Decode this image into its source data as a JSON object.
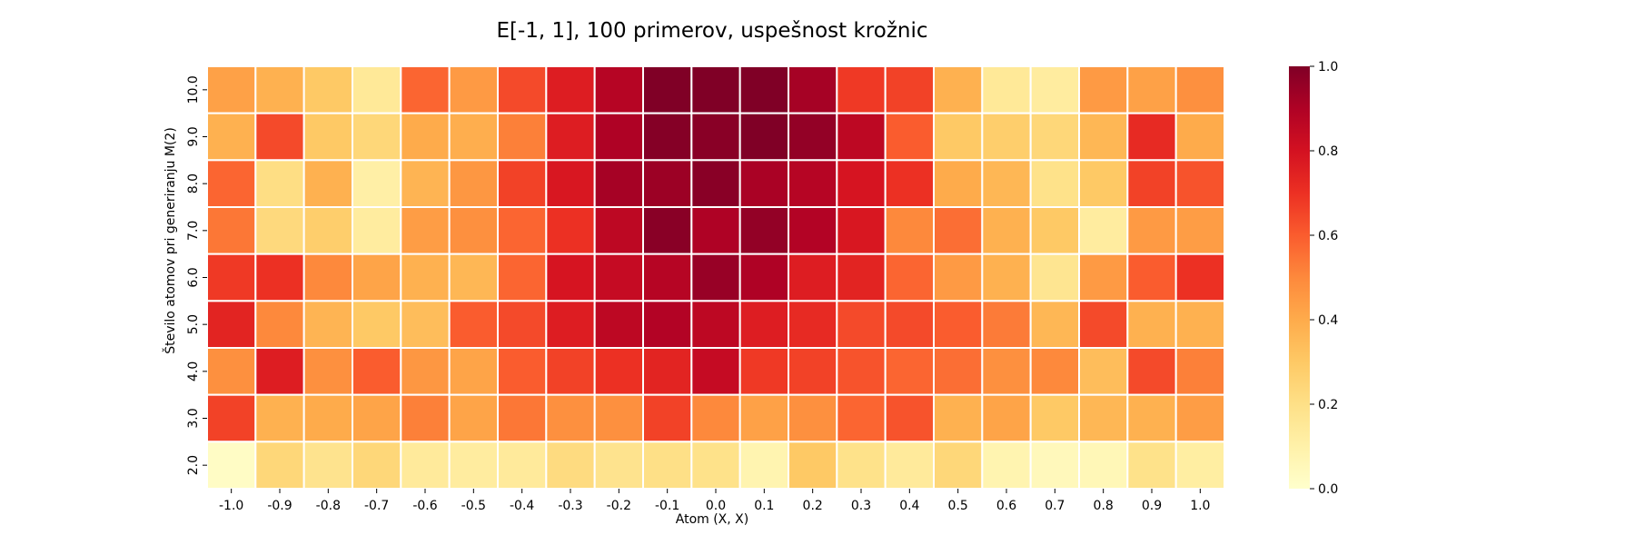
{
  "chart_data": {
    "type": "heatmap",
    "title": "E[-1, 1], 100 primerov, uspešnost krožnic",
    "xlabel": "Atom (X, X)",
    "ylabel": "Število atomov pri generiranju M(2)",
    "x_categories": [
      "-1.0",
      "-0.9",
      "-0.8",
      "-0.7",
      "-0.6",
      "-0.5",
      "-0.4",
      "-0.3",
      "-0.2",
      "-0.1",
      "0.0",
      "0.1",
      "0.2",
      "0.3",
      "0.4",
      "0.5",
      "0.6",
      "0.7",
      "0.8",
      "0.9",
      "1.0"
    ],
    "y_categories": [
      "10.0",
      "9.0",
      "8.0",
      "7.0",
      "6.0",
      "5.0",
      "4.0",
      "3.0",
      "2.0"
    ],
    "values": [
      [
        0.43,
        0.38,
        0.3,
        0.15,
        0.58,
        0.45,
        0.64,
        0.76,
        0.88,
        1.0,
        1.0,
        1.0,
        0.92,
        0.68,
        0.66,
        0.38,
        0.15,
        0.13,
        0.45,
        0.43,
        0.48
      ],
      [
        0.38,
        0.64,
        0.3,
        0.24,
        0.4,
        0.39,
        0.52,
        0.76,
        0.9,
        0.99,
        0.98,
        1.0,
        0.96,
        0.86,
        0.6,
        0.3,
        0.28,
        0.24,
        0.36,
        0.72,
        0.4
      ],
      [
        0.58,
        0.21,
        0.38,
        0.11,
        0.37,
        0.46,
        0.66,
        0.78,
        0.92,
        0.94,
        0.98,
        0.91,
        0.88,
        0.79,
        0.7,
        0.4,
        0.36,
        0.19,
        0.3,
        0.66,
        0.62
      ],
      [
        0.54,
        0.23,
        0.28,
        0.13,
        0.44,
        0.48,
        0.58,
        0.7,
        0.86,
        0.98,
        0.9,
        0.96,
        0.89,
        0.78,
        0.5,
        0.56,
        0.38,
        0.3,
        0.13,
        0.45,
        0.44
      ],
      [
        0.68,
        0.7,
        0.5,
        0.42,
        0.38,
        0.36,
        0.58,
        0.79,
        0.84,
        0.88,
        0.95,
        0.9,
        0.76,
        0.74,
        0.58,
        0.45,
        0.38,
        0.17,
        0.45,
        0.6,
        0.7
      ],
      [
        0.74,
        0.5,
        0.37,
        0.3,
        0.34,
        0.6,
        0.64,
        0.76,
        0.86,
        0.89,
        0.86,
        0.76,
        0.72,
        0.64,
        0.64,
        0.6,
        0.53,
        0.36,
        0.64,
        0.38,
        0.38
      ],
      [
        0.48,
        0.76,
        0.48,
        0.6,
        0.46,
        0.42,
        0.6,
        0.66,
        0.7,
        0.74,
        0.84,
        0.68,
        0.66,
        0.62,
        0.58,
        0.56,
        0.48,
        0.5,
        0.34,
        0.64,
        0.52
      ],
      [
        0.66,
        0.38,
        0.4,
        0.42,
        0.52,
        0.42,
        0.54,
        0.48,
        0.48,
        0.66,
        0.5,
        0.43,
        0.48,
        0.58,
        0.62,
        0.38,
        0.42,
        0.3,
        0.36,
        0.38,
        0.44
      ],
      [
        0.02,
        0.24,
        0.18,
        0.24,
        0.14,
        0.13,
        0.14,
        0.22,
        0.18,
        0.2,
        0.19,
        0.08,
        0.3,
        0.19,
        0.14,
        0.24,
        0.08,
        0.05,
        0.06,
        0.19,
        0.12
      ]
    ],
    "colorbar": {
      "min": 0.0,
      "max": 1.0,
      "ticks": [
        "0.0",
        "0.2",
        "0.4",
        "0.6",
        "0.8",
        "1.0"
      ]
    },
    "colormap": [
      "#ffffcc",
      "#fff1a9",
      "#fee087",
      "#fec965",
      "#feab4b",
      "#fd893c",
      "#fa5c2e",
      "#ec3023",
      "#d31121",
      "#af0225",
      "#800026"
    ]
  }
}
